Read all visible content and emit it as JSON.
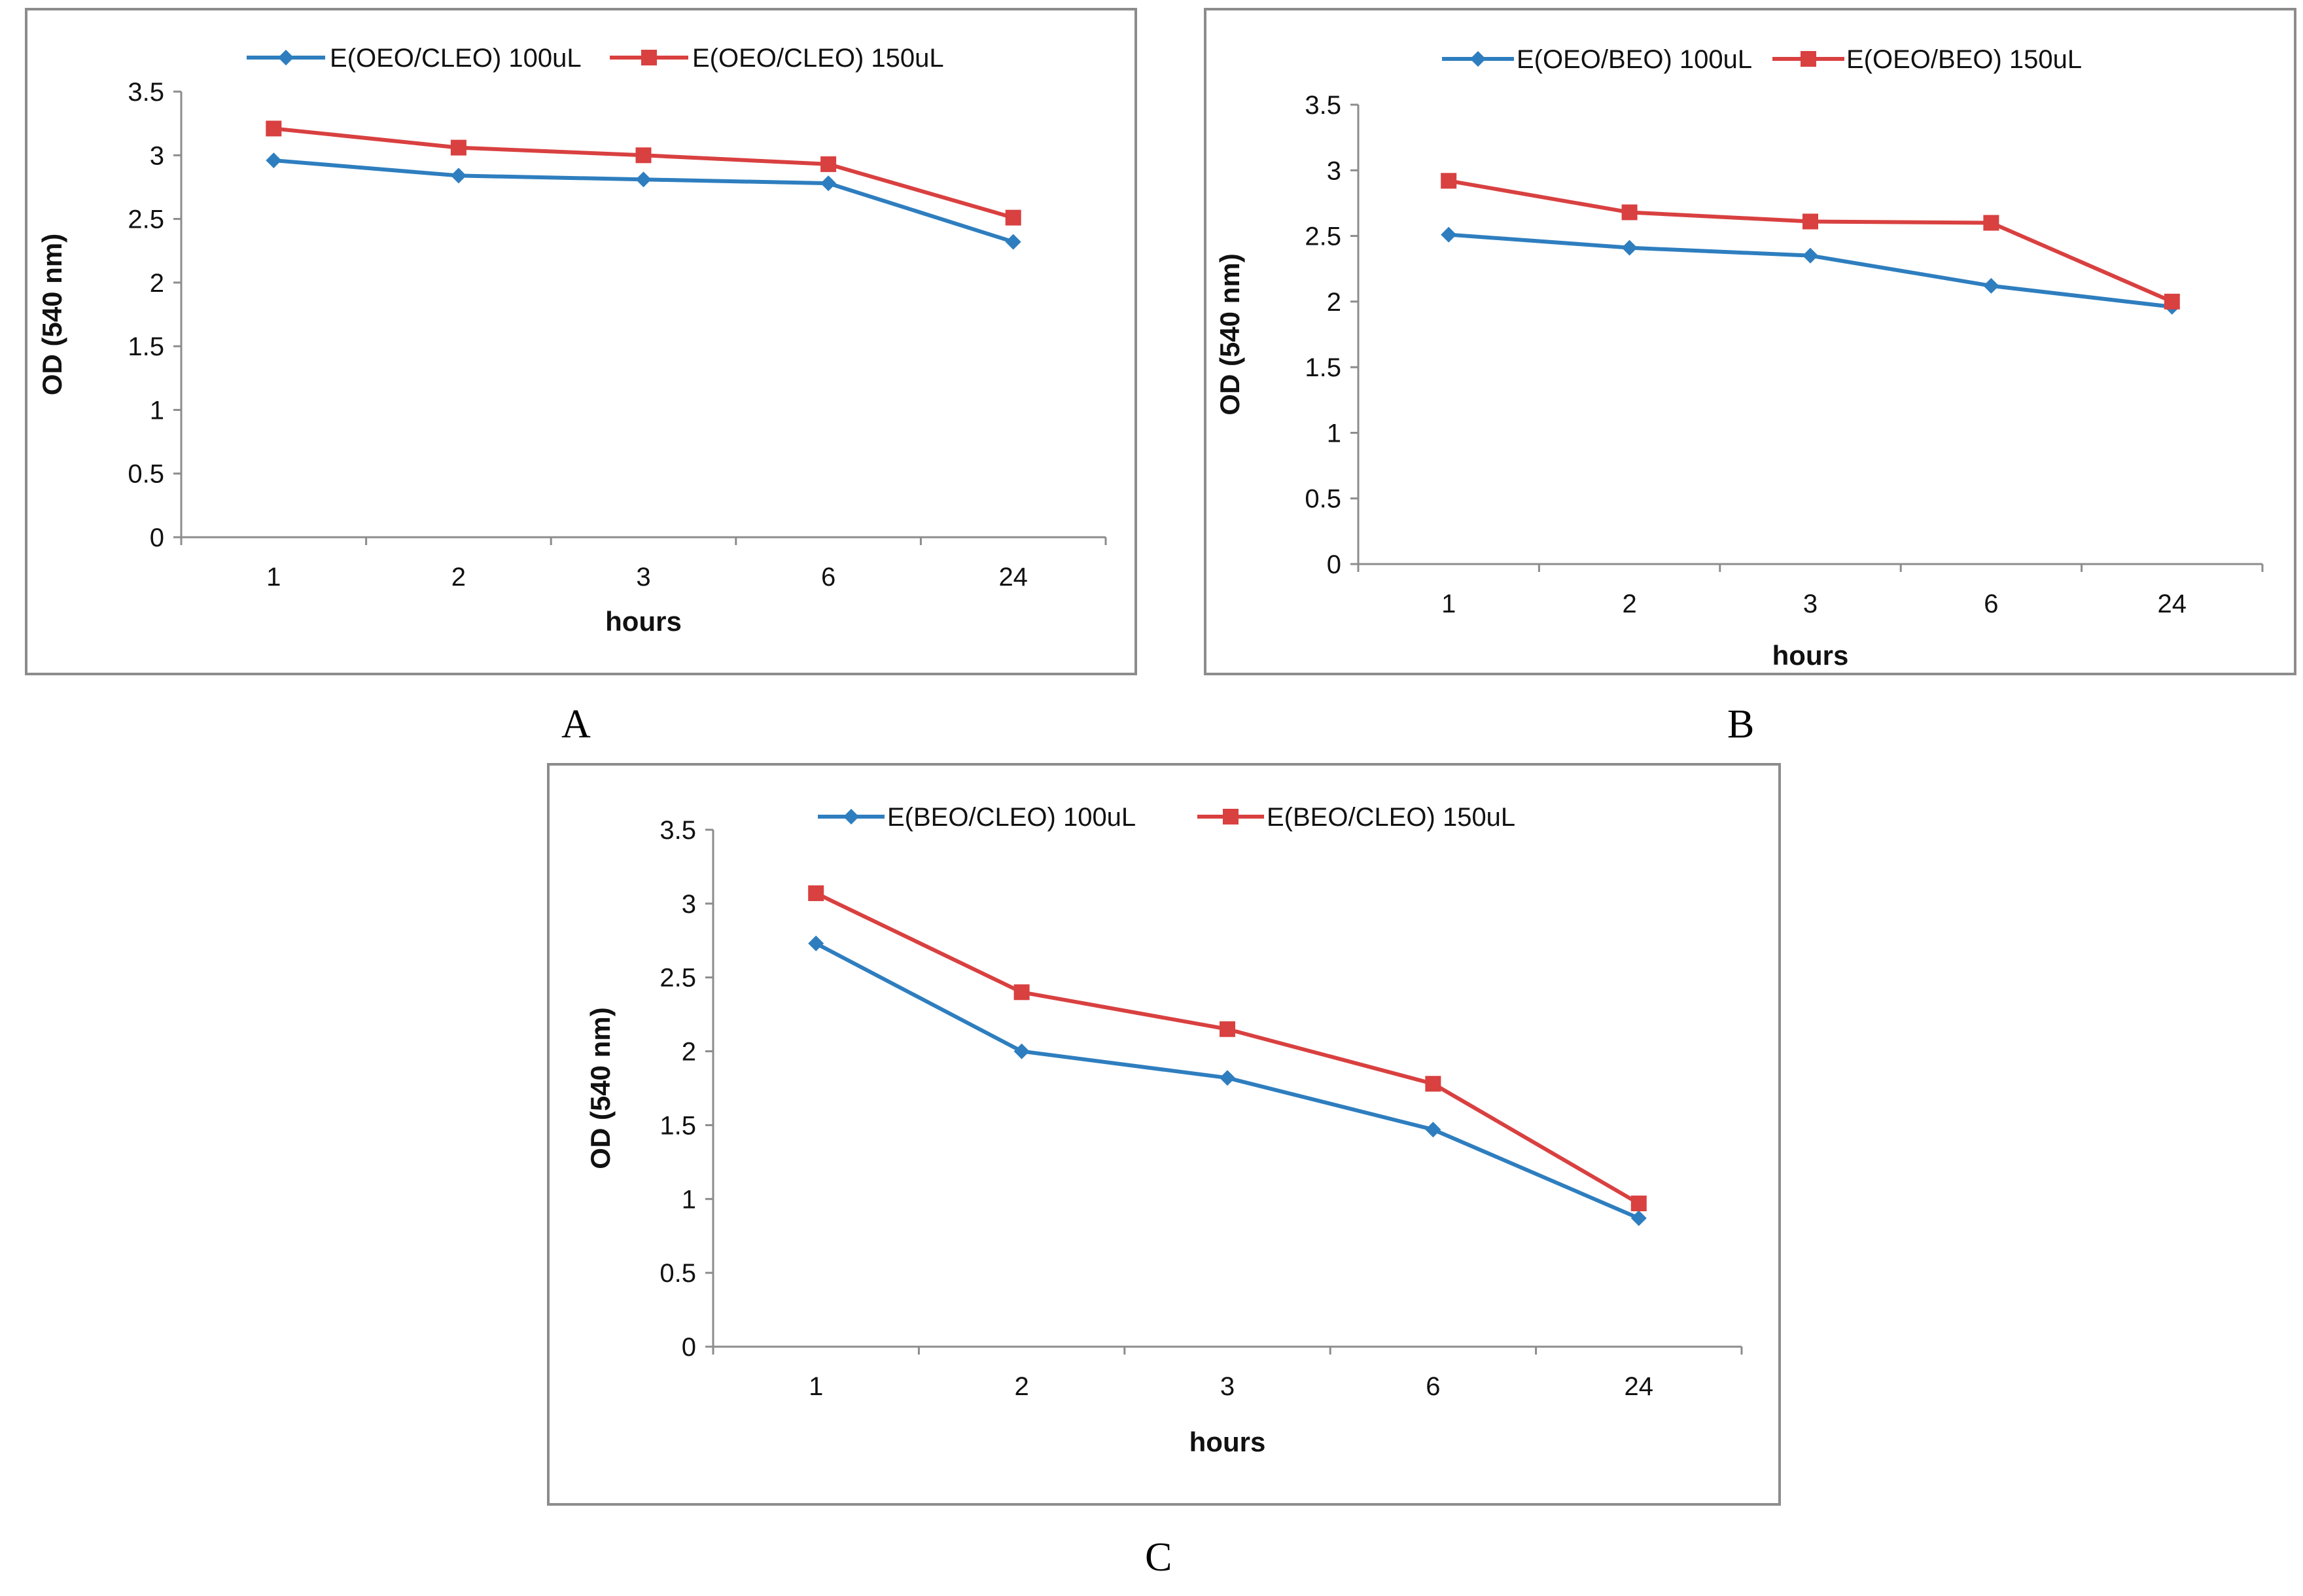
{
  "charts": [
    {
      "id": "A",
      "panel_letter": "A",
      "chart_data": {
        "type": "line",
        "categories": [
          "1",
          "2",
          "3",
          "6",
          "24"
        ],
        "series": [
          {
            "name": "E(OEO/CLEO) 100uL",
            "color": "#2e7ebf",
            "marker": "diamond",
            "values": [
              2.96,
              2.84,
              2.81,
              2.78,
              2.32
            ]
          },
          {
            "name": "E(OEO/CLEO) 150uL",
            "color": "#d94040",
            "marker": "square",
            "values": [
              3.21,
              3.06,
              3.0,
              2.93,
              2.51
            ]
          }
        ],
        "xlabel": "hours",
        "ylabel": "OD (540 nm)",
        "ylim": [
          0,
          3.5
        ],
        "yticks": [
          "0",
          "0.5",
          "1",
          "1.5",
          "2",
          "2.5",
          "3",
          "3.5"
        ],
        "legend_position": "top"
      }
    },
    {
      "id": "B",
      "panel_letter": "B",
      "chart_data": {
        "type": "line",
        "categories": [
          "1",
          "2",
          "3",
          "6",
          "24"
        ],
        "series": [
          {
            "name": "E(OEO/BEO) 100uL",
            "color": "#2e7ebf",
            "marker": "diamond",
            "values": [
              2.51,
              2.41,
              2.35,
              2.12,
              1.96
            ]
          },
          {
            "name": "E(OEO/BEO) 150uL",
            "color": "#d94040",
            "marker": "square",
            "values": [
              2.92,
              2.68,
              2.61,
              2.6,
              2.0
            ]
          }
        ],
        "xlabel": "hours",
        "ylabel": "OD (540 nm)",
        "ylim": [
          0,
          3.5
        ],
        "yticks": [
          "0",
          "0.5",
          "1",
          "1.5",
          "2",
          "2.5",
          "3",
          "3.5"
        ],
        "legend_position": "top"
      }
    },
    {
      "id": "C",
      "panel_letter": "C",
      "chart_data": {
        "type": "line",
        "categories": [
          "1",
          "2",
          "3",
          "6",
          "24"
        ],
        "series": [
          {
            "name": "E(BEO/CLEO) 100uL",
            "color": "#2e7ebf",
            "marker": "diamond",
            "values": [
              2.73,
              2.0,
              1.82,
              1.47,
              0.87
            ]
          },
          {
            "name": "E(BEO/CLEO) 150uL",
            "color": "#d94040",
            "marker": "square",
            "values": [
              3.07,
              2.4,
              2.15,
              1.78,
              0.97
            ]
          }
        ],
        "xlabel": "hours",
        "ylabel": "OD (540 nm)",
        "ylim": [
          0,
          3.5
        ],
        "yticks": [
          "0",
          "0.5",
          "1",
          "1.5",
          "2",
          "2.5",
          "3",
          "3.5"
        ],
        "legend_position": "top"
      }
    }
  ]
}
